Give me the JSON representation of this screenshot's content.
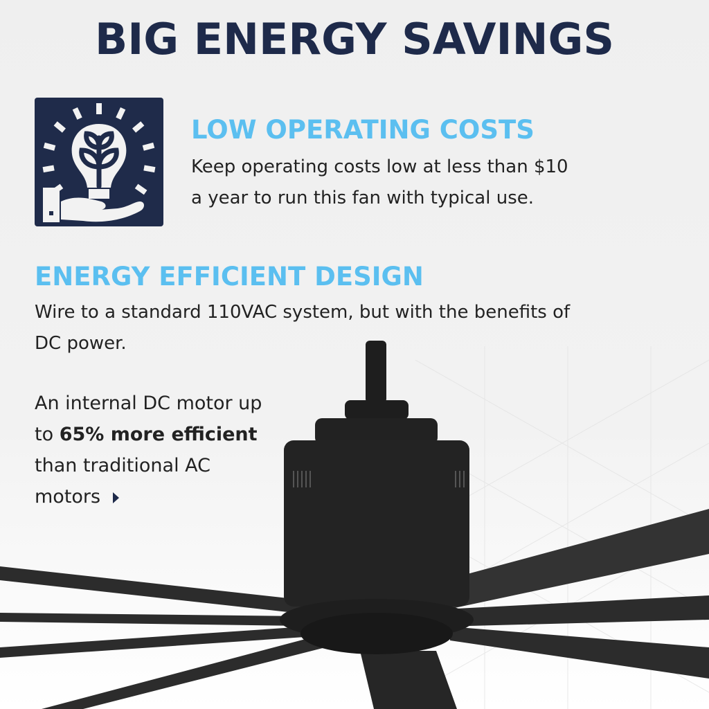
{
  "title": "BIG ENERGY SAVINGS",
  "colors": {
    "navy": "#1f2b4a",
    "accent": "#5bbff0",
    "fan": "#2a2a2a"
  },
  "feature1": {
    "icon": "lightbulb-plant-hand-icon",
    "heading": "LOW OPERATING COSTS",
    "line1": "Keep operating costs low at less than $10",
    "line2": "a year to run this fan with typical use."
  },
  "feature2": {
    "heading": "ENERGY EFFICIENT DESIGN",
    "line1": "Wire to a standard 110VAC system, but with the benefits of",
    "line2": "DC power."
  },
  "motor": {
    "line1": "An internal DC motor up",
    "line2_pre": "to ",
    "line2_bold": "65% more efficient",
    "line3": "than traditional AC",
    "line4": "motors"
  }
}
